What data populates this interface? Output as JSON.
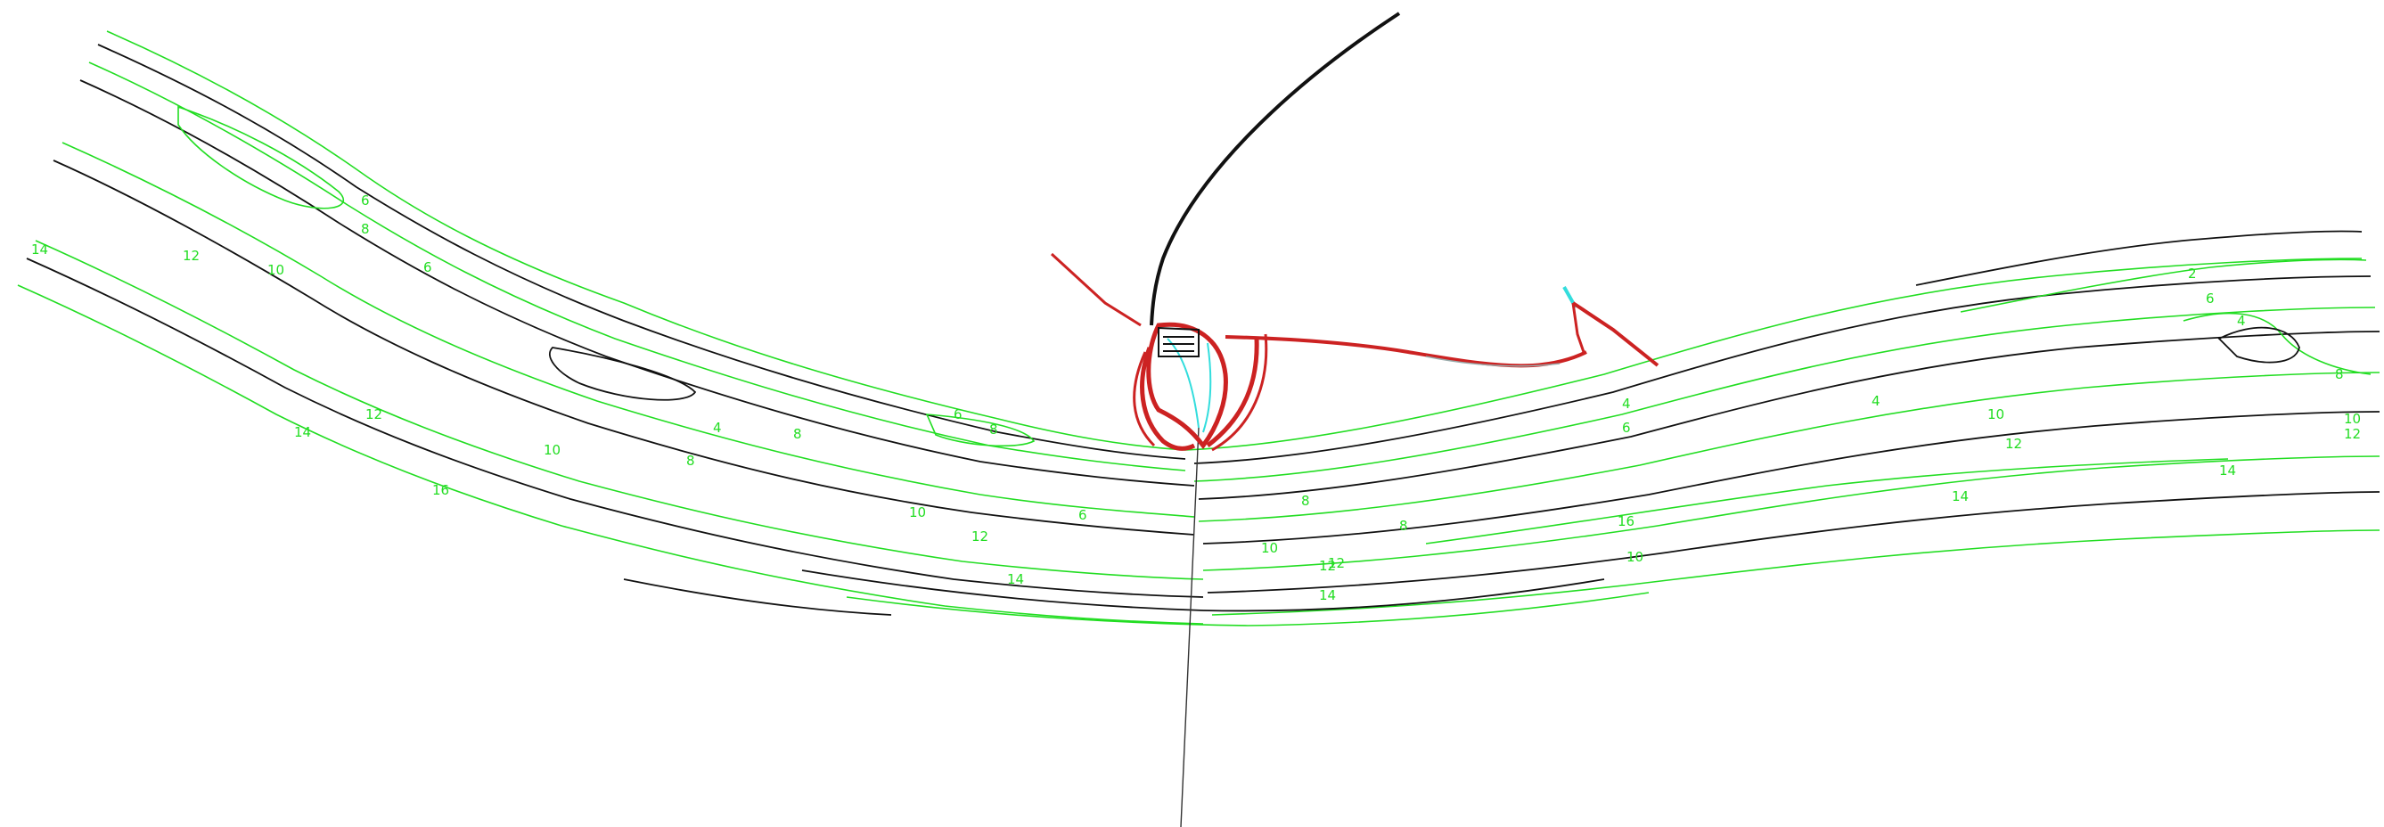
{
  "map": {
    "background": "#ffffff",
    "colors": {
      "contour_major": "#22dd22",
      "contour_minor": "#111111",
      "structure_red": "#cc2222",
      "structure_cyan": "#33dddd",
      "channel_black": "#111111"
    },
    "depth_labels": [
      "2",
      "4",
      "6",
      "8",
      "10",
      "12",
      "14",
      "16"
    ],
    "contour_label_values": [
      {
        "value": "6"
      },
      {
        "value": "8"
      },
      {
        "value": "10"
      },
      {
        "value": "12"
      },
      {
        "value": "14"
      },
      {
        "value": "14"
      },
      {
        "value": "12"
      },
      {
        "value": "10"
      },
      {
        "value": "8"
      },
      {
        "value": "6"
      },
      {
        "value": "4"
      },
      {
        "value": "8"
      },
      {
        "value": "10"
      },
      {
        "value": "12"
      },
      {
        "value": "14"
      },
      {
        "value": "6"
      },
      {
        "value": "8"
      },
      {
        "value": "10"
      },
      {
        "value": "12"
      },
      {
        "value": "14"
      },
      {
        "value": "2"
      },
      {
        "value": "4"
      },
      {
        "value": "6"
      },
      {
        "value": "8"
      },
      {
        "value": "10"
      },
      {
        "value": "12"
      },
      {
        "value": "14"
      },
      {
        "value": "16"
      },
      {
        "value": "12"
      },
      {
        "value": "14"
      },
      {
        "value": "4"
      },
      {
        "value": "6"
      },
      {
        "value": "8"
      },
      {
        "value": "10"
      },
      {
        "value": "12"
      },
      {
        "value": "8"
      },
      {
        "value": "6"
      },
      {
        "value": "4"
      },
      {
        "value": "10"
      },
      {
        "value": "16"
      }
    ]
  }
}
